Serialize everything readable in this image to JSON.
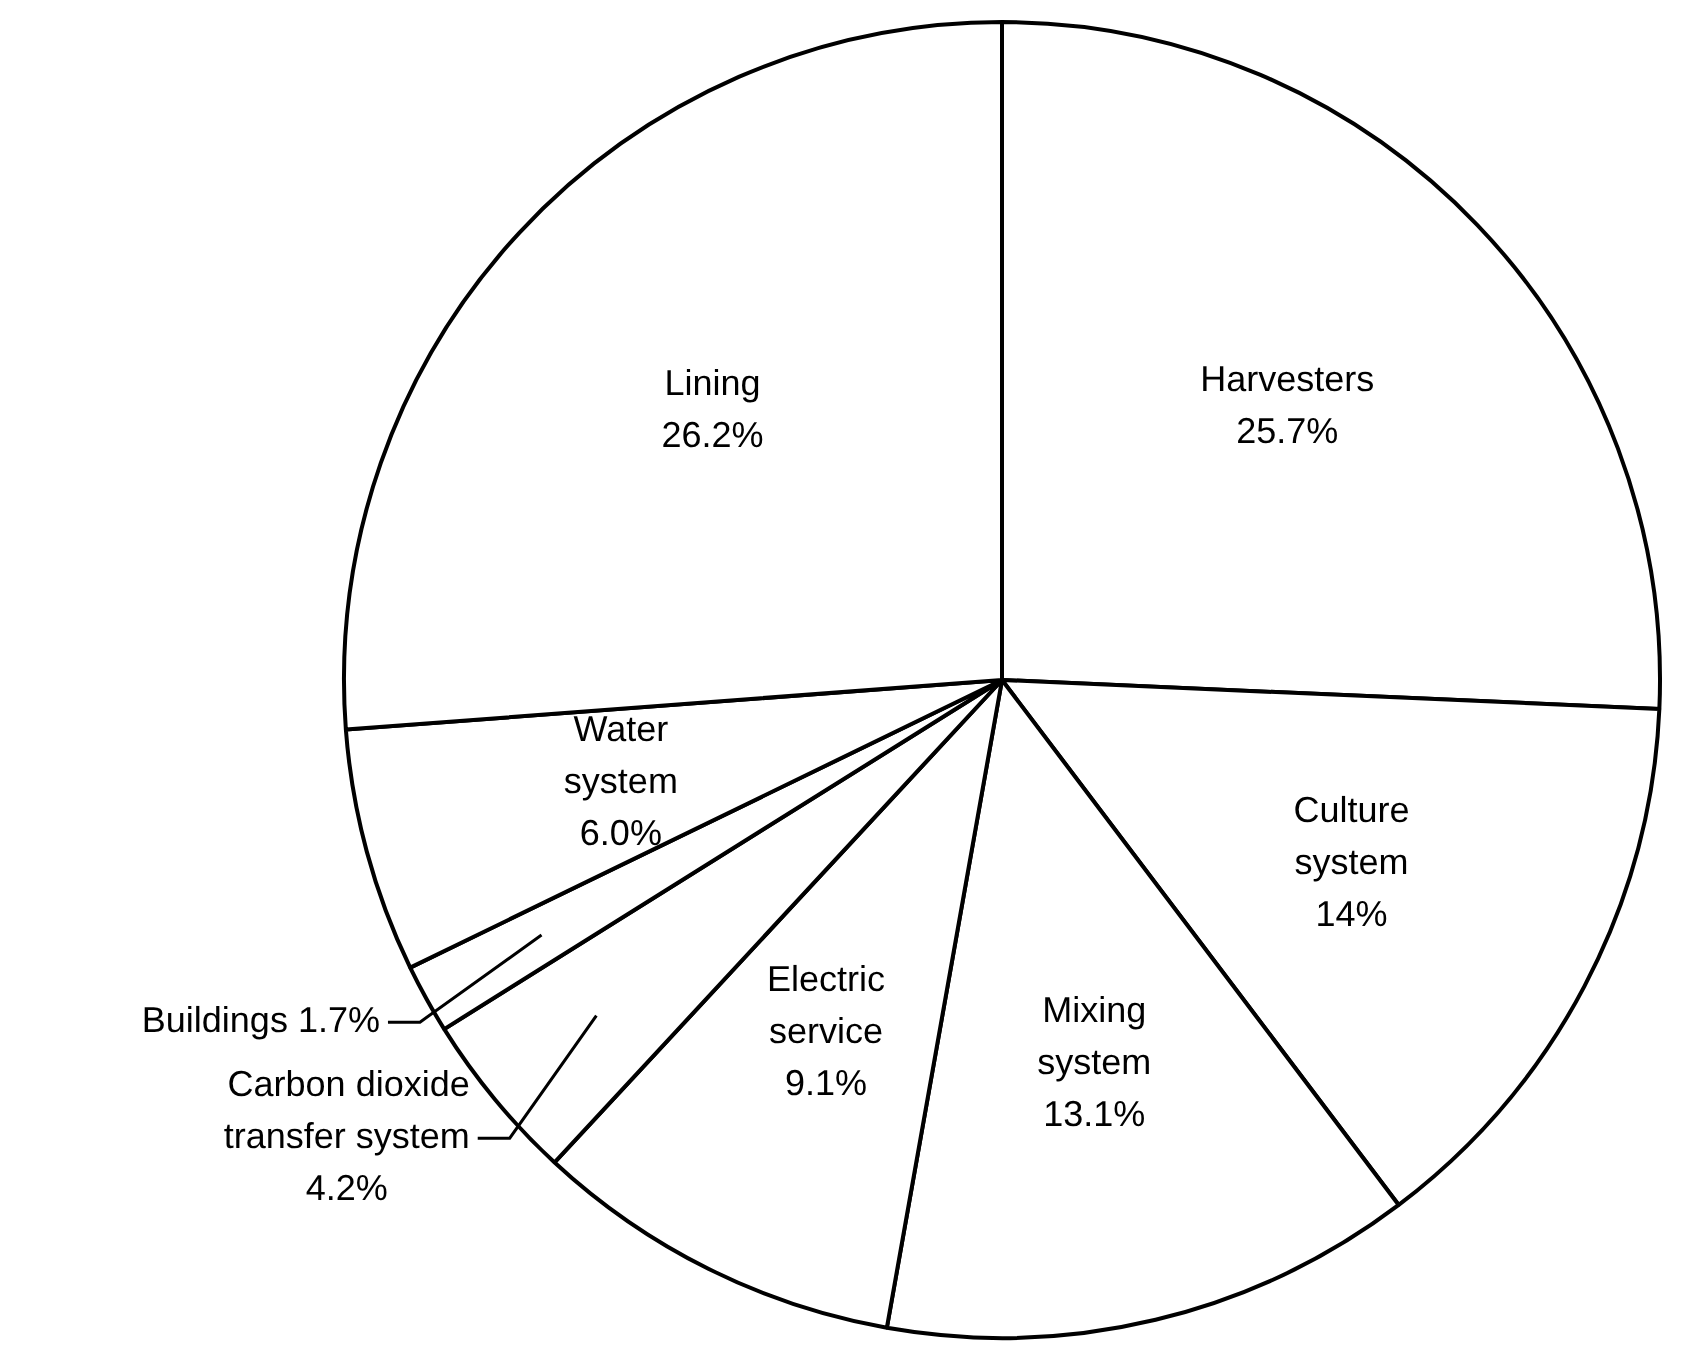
{
  "chart_data": {
    "type": "pie",
    "categories": [
      "Harvesters",
      "Culture system",
      "Mixing system",
      "Electric service",
      "Carbon dioxide transfer system",
      "Buildings",
      "Water system",
      "Lining"
    ],
    "values": [
      25.7,
      14,
      13.1,
      9.1,
      4.2,
      1.7,
      6.0,
      26.2
    ],
    "value_labels": [
      "25.7%",
      "14%",
      "13.1%",
      "9.1%",
      "4.2%",
      "1.7%",
      "6.0%",
      "26.2%"
    ],
    "colors": [
      "#ffffff",
      "#ffffff",
      "#ffffff",
      "#ffffff",
      "#ffffff",
      "#ffffff",
      "#ffffff",
      "#ffffff"
    ],
    "legend": false
  }
}
